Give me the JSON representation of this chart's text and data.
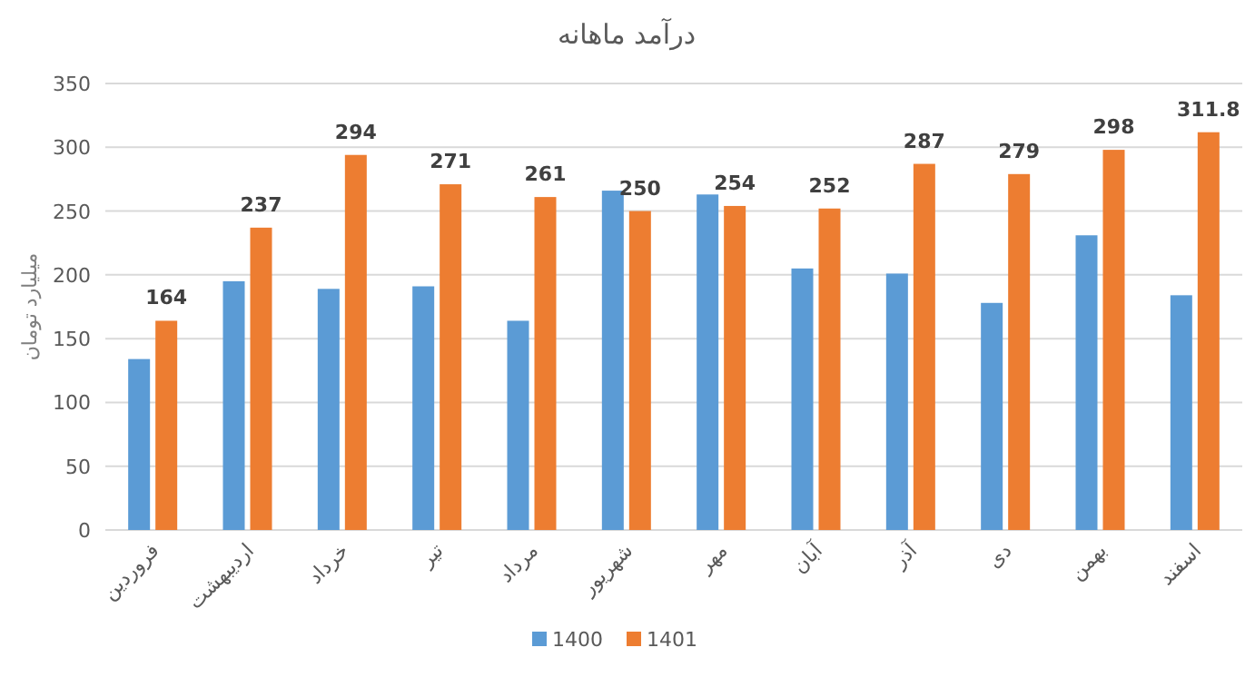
{
  "chart_data": {
    "type": "bar",
    "title": "درآمد ماهانه",
    "ylabel": "میلیارد تومان",
    "categories": [
      "فروردین",
      "اردیبهشت",
      "خرداد",
      "تیر",
      "مرداد",
      "شهریور",
      "مهر",
      "آبان",
      "آذر",
      "دی",
      "بهمن",
      "اسفند"
    ],
    "series": [
      {
        "name": "1400",
        "color": "#5b9bd5",
        "values": [
          134,
          195,
          189,
          191,
          164,
          266,
          263,
          205,
          201,
          178,
          231,
          184
        ]
      },
      {
        "name": "1401",
        "color": "#ed7d31",
        "values": [
          164,
          237,
          294,
          271,
          261,
          250,
          254,
          252,
          287,
          279,
          298,
          311.8
        ],
        "value_labels": [
          "164",
          "237",
          "294",
          "271",
          "261",
          "250",
          "254",
          "252",
          "287",
          "279",
          "298",
          "311.8"
        ]
      }
    ],
    "ylim": [
      0,
      350
    ],
    "yticks": [
      0,
      50,
      100,
      150,
      200,
      250,
      300,
      350
    ],
    "grid": "y",
    "legend": "bottom"
  }
}
